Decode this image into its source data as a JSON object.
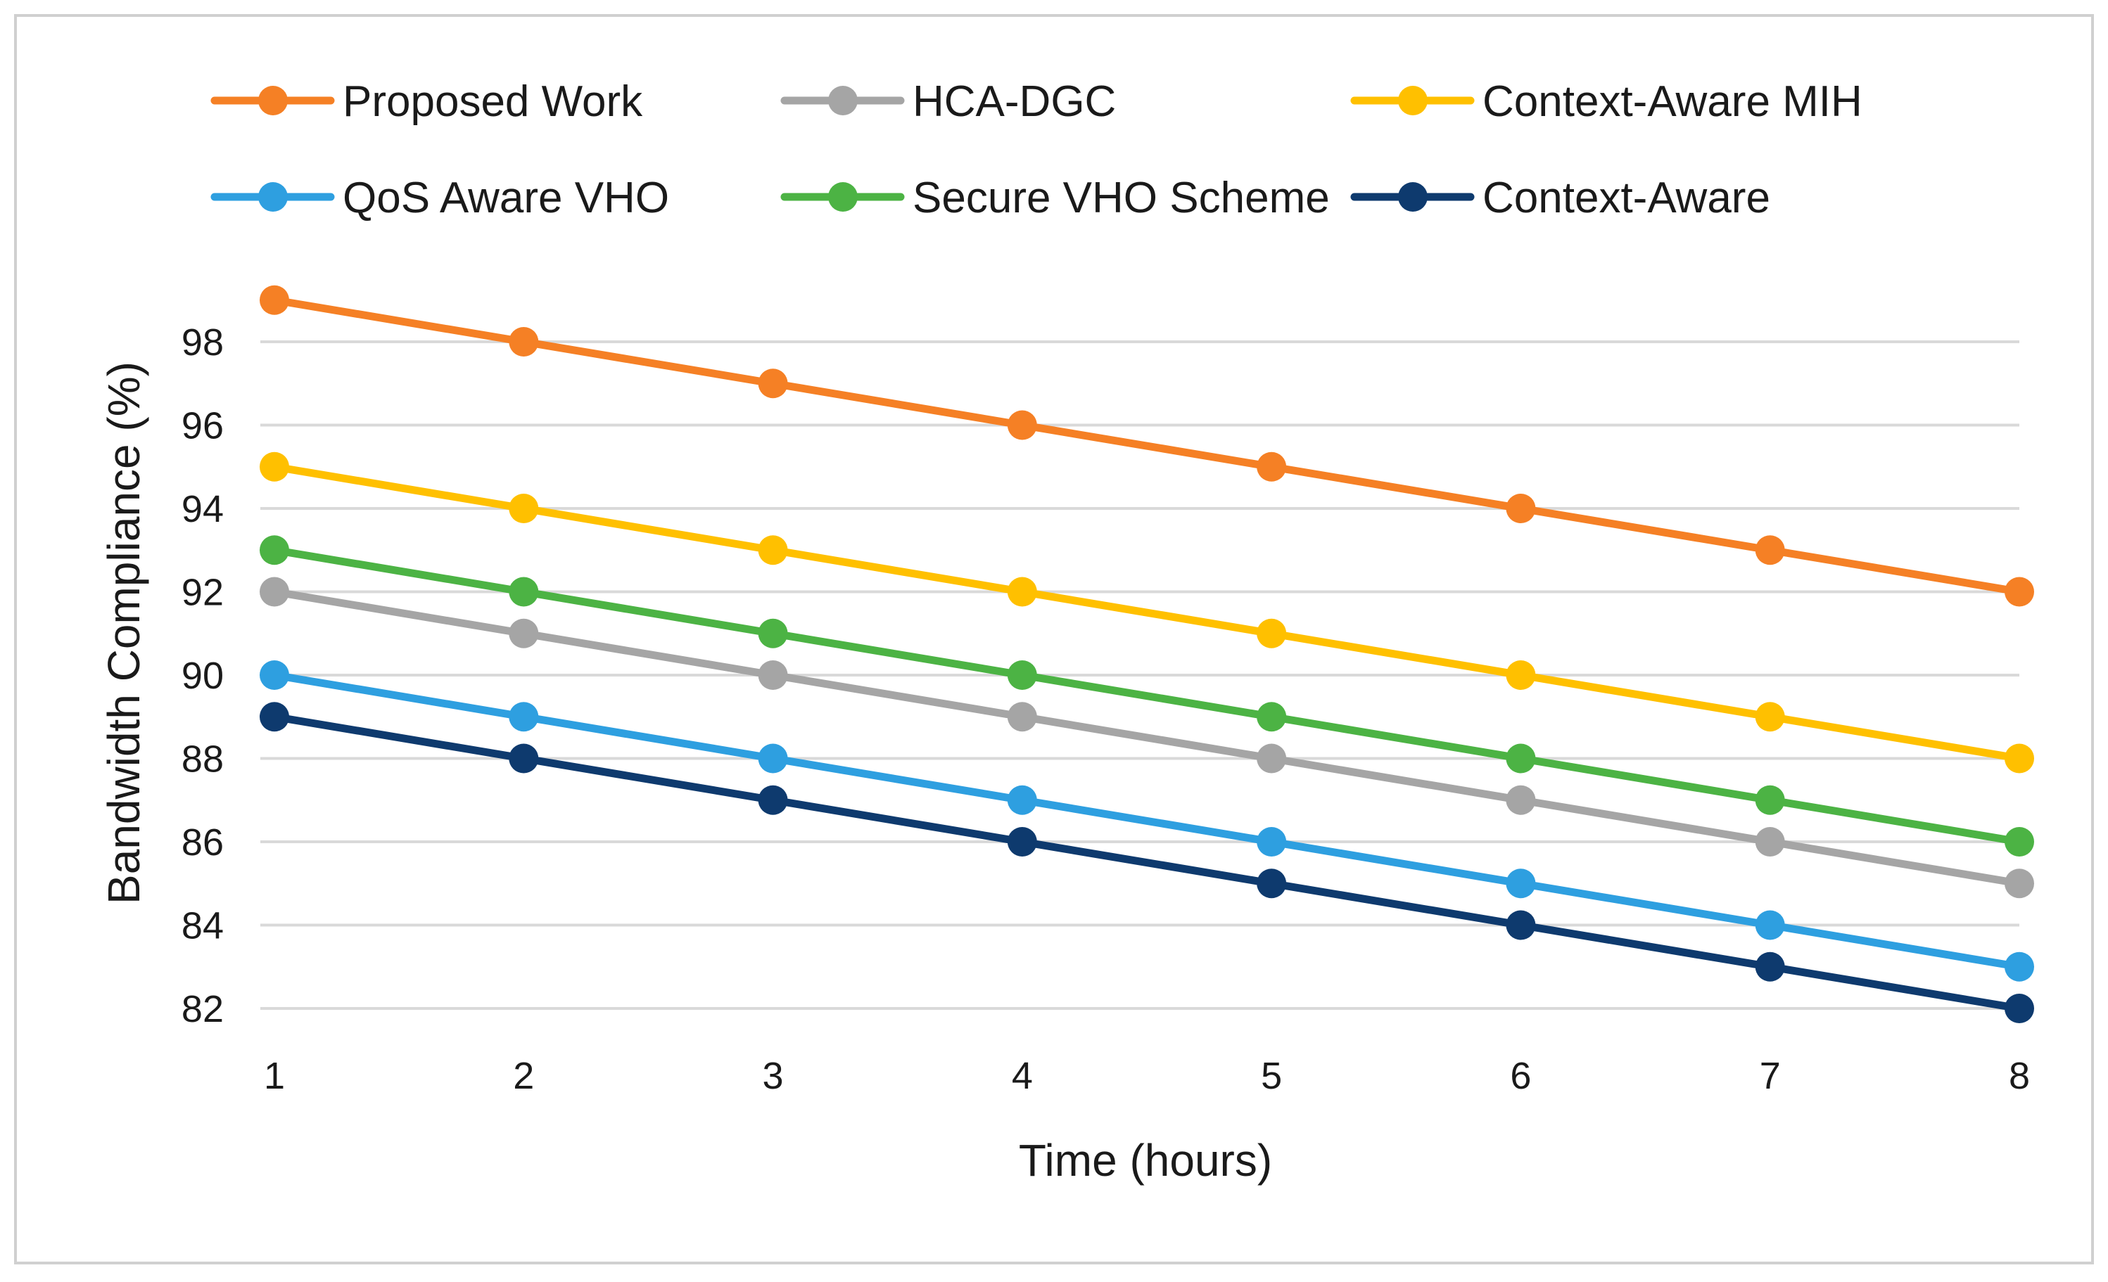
{
  "chart_data": {
    "type": "line",
    "title": "",
    "xlabel": "Time (hours)",
    "ylabel": "Bandwidth Compliance (%)",
    "x": [
      1,
      2,
      3,
      4,
      5,
      6,
      7,
      8
    ],
    "xticks": [
      "1",
      "2",
      "3",
      "4",
      "5",
      "6",
      "7",
      "8"
    ],
    "yticks": [
      "82",
      "84",
      "86",
      "88",
      "90",
      "92",
      "94",
      "96",
      "98"
    ],
    "ylim": [
      82,
      98
    ],
    "grid": true,
    "legend_position": "top",
    "series": [
      {
        "name": "Proposed Work",
        "color": "#F58025",
        "values": [
          99,
          98,
          97,
          96,
          95,
          94,
          93,
          92
        ]
      },
      {
        "name": "HCA-DGC",
        "color": "#A5A5A5",
        "values": [
          92,
          91,
          90,
          89,
          88,
          87,
          86,
          85
        ]
      },
      {
        "name": "Context-Aware MIH",
        "color": "#FFC000",
        "values": [
          95,
          94,
          93,
          92,
          91,
          90,
          89,
          88
        ]
      },
      {
        "name": "QoS Aware VHO",
        "color": "#2E9FE0",
        "values": [
          90,
          89,
          88,
          87,
          86,
          85,
          84,
          83
        ]
      },
      {
        "name": "Secure VHO Scheme",
        "color": "#4CB344",
        "values": [
          93,
          92,
          91,
          90,
          89,
          88,
          87,
          86
        ]
      },
      {
        "name": "Context-Aware",
        "color": "#0E3A6E",
        "values": [
          89,
          88,
          87,
          86,
          85,
          84,
          83,
          82
        ]
      }
    ]
  }
}
